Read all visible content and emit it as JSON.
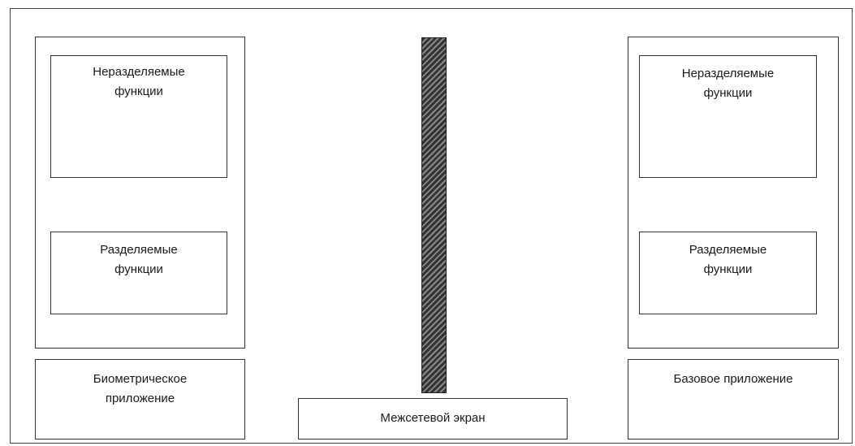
{
  "left_app": {
    "non_shared_label": "Неразделяемые\nфункции",
    "shared_label": "Разделяемые\nфункции",
    "app_label": "Биометрическое\nприложение"
  },
  "firewall": {
    "label": "Межсетевой экран"
  },
  "right_app": {
    "non_shared_label": "Неразделяемые\nфункции",
    "shared_label": "Разделяемые\nфункции",
    "app_label": "Базовое приложение"
  },
  "colors": {
    "line": "#333333",
    "hatch_dark": "#333333",
    "hatch_light": "#8a8a8a"
  }
}
